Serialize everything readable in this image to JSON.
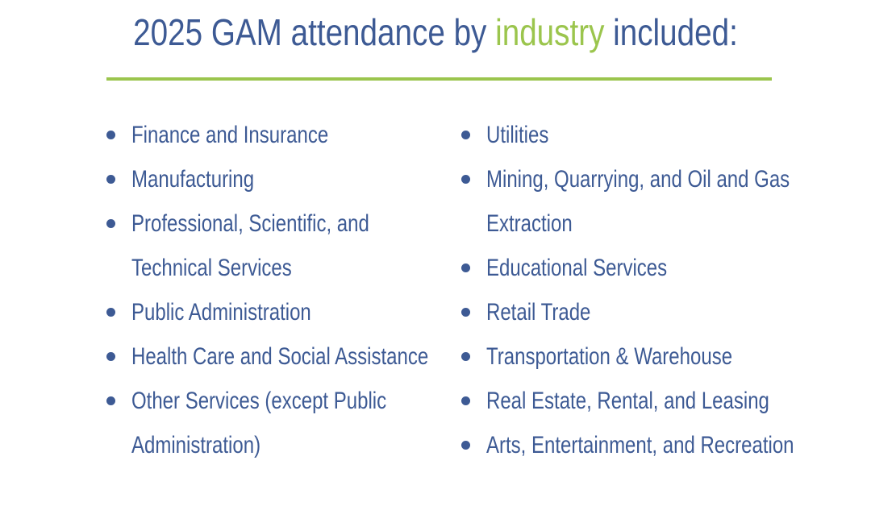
{
  "header": {
    "title_before": "2025 GAM attendance by ",
    "title_accent": "industry",
    "title_after": " included:"
  },
  "left_items": [
    "Finance and Insurance",
    "Manufacturing",
    "Professional, Scientific, and Technical Services",
    "Public Administration",
    "Health Care and Social Assistance",
    "Other Services (except Public Administration)"
  ],
  "right_items": [
    "Utilities",
    "Mining, Quarrying, and Oil and Gas Extraction",
    "Educational Services",
    "Retail Trade",
    "Transportation & Warehouse",
    "Real Estate, Rental, and Leasing",
    "Arts, Entertainment, and Recreation"
  ],
  "colors": {
    "text": "#3d5a94",
    "accent": "#9bc54d"
  }
}
